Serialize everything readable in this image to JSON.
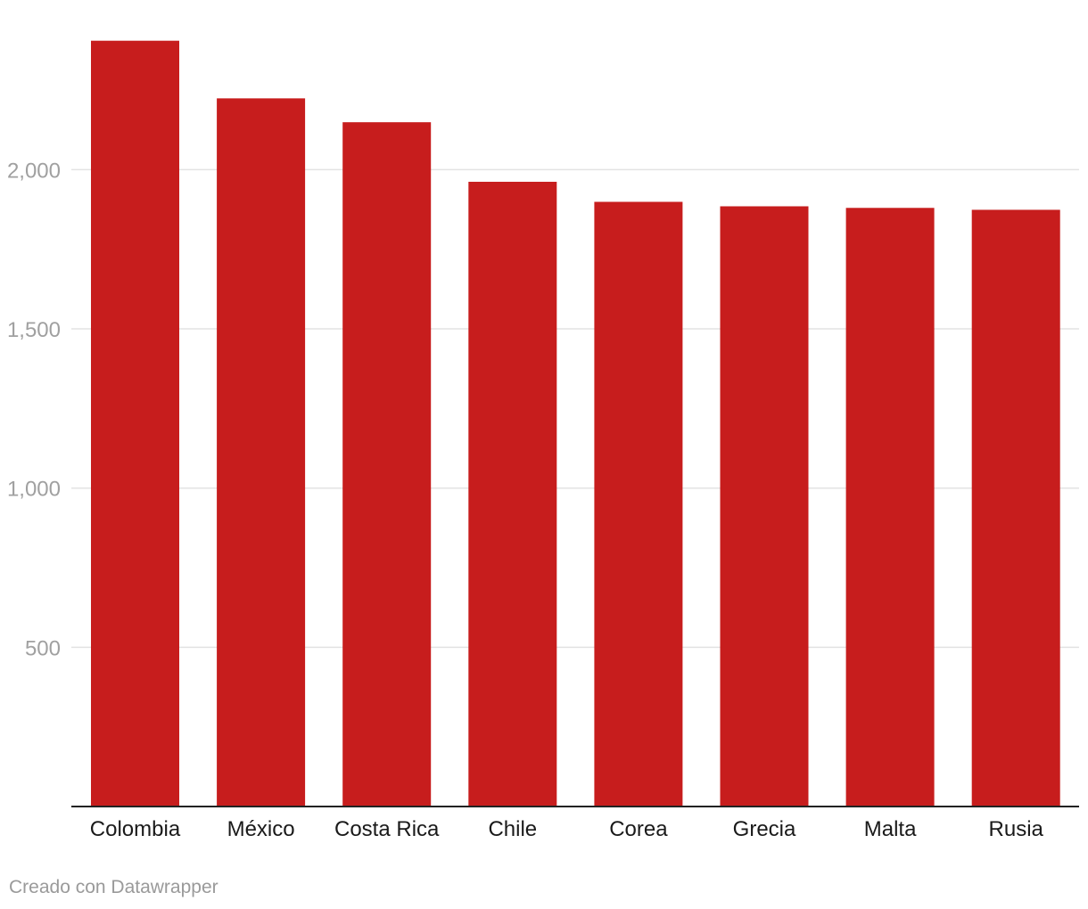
{
  "chart_data": {
    "type": "bar",
    "categories": [
      "Colombia",
      "México",
      "Costa Rica",
      "Chile",
      "Corea",
      "Grecia",
      "Malta",
      "Rusia"
    ],
    "values": [
      2405,
      2224,
      2149,
      1962,
      1899,
      1885,
      1880,
      1874
    ],
    "title": "",
    "xlabel": "",
    "ylabel": "",
    "ylim": [
      0,
      2500
    ],
    "yticks": [
      500,
      1000,
      1500,
      2000
    ],
    "ytick_labels": [
      "500",
      "1,000",
      "1,500",
      "2,000"
    ],
    "bar_color": "#c71d1d",
    "grid": true
  },
  "footer": {
    "credit": "Creado con Datawrapper"
  }
}
